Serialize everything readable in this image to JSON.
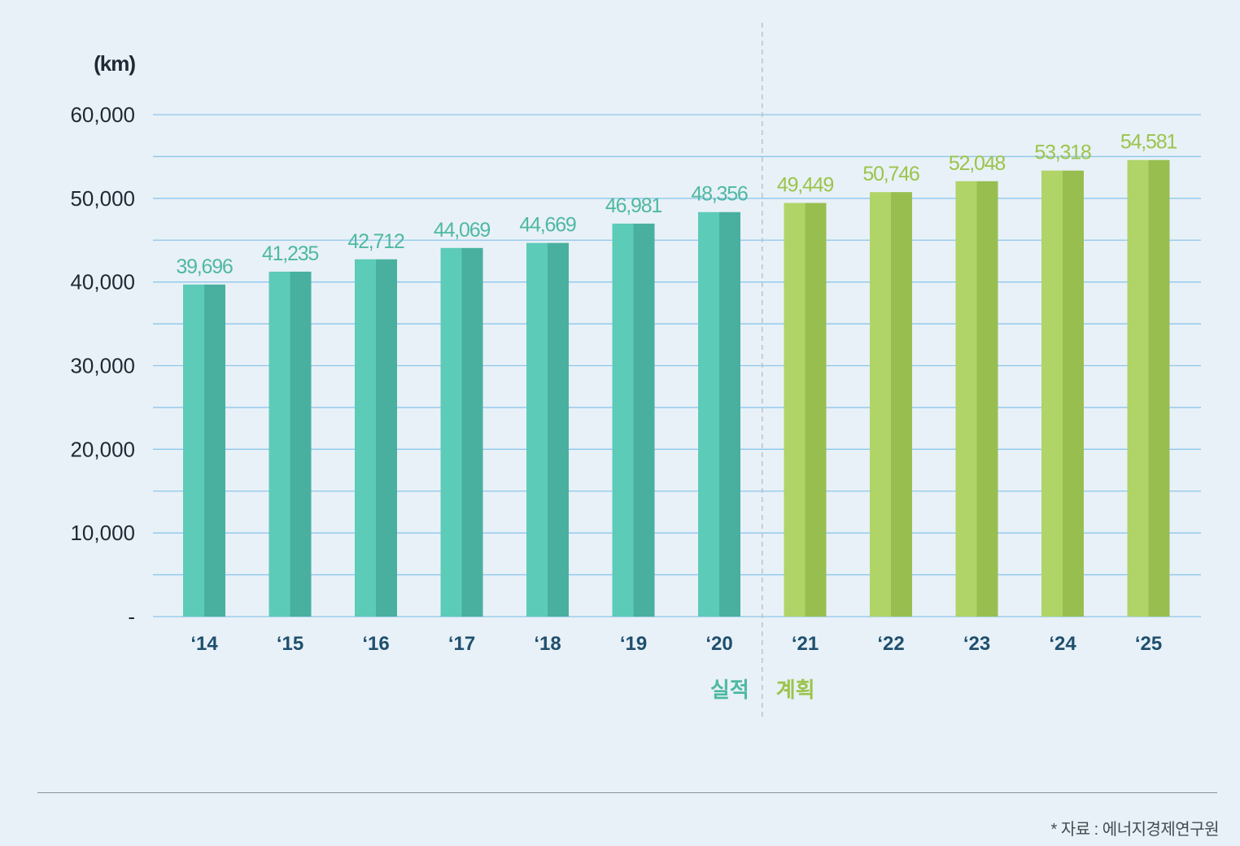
{
  "chart_data": {
    "type": "bar",
    "unit_label": "(km)",
    "categories": [
      "‘14",
      "‘15",
      "‘16",
      "‘17",
      "‘18",
      "‘19",
      "‘20",
      "‘21",
      "‘22",
      "‘23",
      "‘24",
      "‘25"
    ],
    "values": [
      39696,
      41235,
      42712,
      44069,
      44669,
      46981,
      48356,
      49449,
      50746,
      52048,
      53318,
      54581
    ],
    "value_labels": [
      "39,696",
      "41,235",
      "42,712",
      "44,069",
      "44,669",
      "46,981",
      "48,356",
      "49,449",
      "50,746",
      "52,048",
      "53,318",
      "54,581"
    ],
    "y_ticks": [
      {
        "value": 0,
        "label": "-"
      },
      {
        "value": 10000,
        "label": "10,000"
      },
      {
        "value": 20000,
        "label": "20,000"
      },
      {
        "value": 30000,
        "label": "30,000"
      },
      {
        "value": 40000,
        "label": "40,000"
      },
      {
        "value": 50000,
        "label": "50,000"
      },
      {
        "value": 60000,
        "label": "60,000"
      }
    ],
    "ylim": [
      0,
      60000
    ],
    "minor_gridlines": [
      5000,
      15000,
      25000,
      35000,
      45000,
      55000
    ],
    "grid": true,
    "groups": [
      {
        "name": "실적",
        "from": 0,
        "to": 6,
        "color_light": "#5ccbb8",
        "color_dark": "#49b0a0",
        "label_color": "#4fb8a3"
      },
      {
        "name": "계획",
        "from": 7,
        "to": 11,
        "color_light": "#b0d467",
        "color_dark": "#98be50",
        "label_color": "#9bc44b"
      }
    ],
    "divider_between": [
      6,
      7
    ]
  },
  "colors": {
    "background": "#e8f1f7",
    "gridline": "#8ec6ec",
    "axis_text": "#1f2933",
    "category_text": "#1f4f6e",
    "divider": "#b8c2c8"
  },
  "source_note": "* 자료 : 에너지경제연구원"
}
